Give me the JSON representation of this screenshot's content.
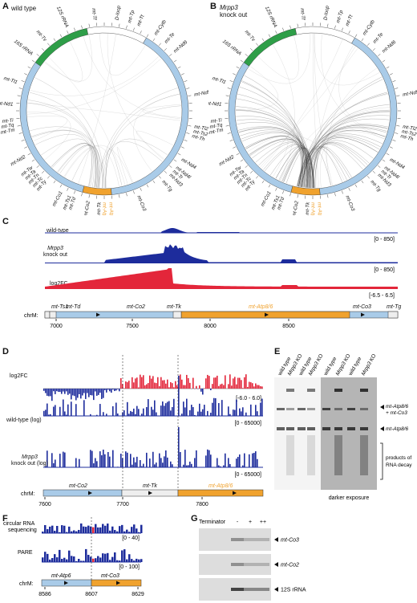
{
  "panels": {
    "A": "A",
    "B": "B",
    "C": "C",
    "D": "D",
    "E": "E",
    "F": "F",
    "G": "G"
  },
  "panelA": {
    "title": "wild type"
  },
  "panelB": {
    "title_italic": "Mrpp3",
    "title_rest": "knock out"
  },
  "circos_labels": {
    "top": [
      "16S rRNA",
      "mt-Tv",
      "12S rRNA",
      "mt-Tf",
      "D-loop",
      "mt-Tp",
      "mt-Tt",
      "mt-Cytb"
    ],
    "left": [
      "mt-Tl1",
      "mt-Nd1",
      "mt-Ti",
      "mt-Tq",
      "mt-Tm",
      "mt-Nd2",
      "mt-Tw",
      "mt-Ta",
      "mt-Tn",
      "mt-Tc",
      "mt-Ty",
      "mt-Co1"
    ],
    "right": [
      "mt-Te",
      "mt-Nd6",
      "mt-Nd5",
      "mt-Tl2",
      "mt-Ts2",
      "mt-Th",
      "mt-Nd4",
      "mt-Nd4l",
      "mt-Tr",
      "mt-Nd3",
      "mt-Tg",
      "mt-Co3"
    ],
    "bottom": [
      "mt-Ts1",
      "mt-Td",
      "mt-Co2",
      "mt-Tk",
      "mt-Atp8",
      "mt-Atp6"
    ]
  },
  "panelC": {
    "tracks": [
      {
        "label": "wild-type",
        "range": "[0 - 850]"
      },
      {
        "label_italic": "Mrpp3",
        "label_rest": "knock out",
        "range": "[0 - 850]"
      },
      {
        "label": "log2FC",
        "range": "[-6.5 - 6.5]"
      }
    ],
    "genes": [
      "mt-Ts1",
      "mt-Td",
      "mt-Co2",
      "mt-Tk",
      "mt-Atp8/6",
      "mt-Co3",
      "mt-Tg"
    ],
    "chrom": "chrM:",
    "ticks": [
      "7000",
      "7500",
      "8000",
      "8500"
    ]
  },
  "panelD": {
    "tracks": [
      {
        "label": "log2FC",
        "range": "[-6.0 - 6.0]"
      },
      {
        "label": "wild-type (log)",
        "range": "[0 - 65000]"
      },
      {
        "label_italic": "Mrpp3",
        "label_rest": "knock out (log)",
        "range": "[0 - 65000]"
      }
    ],
    "genes": [
      "mt-Co2",
      "mt-Tk",
      "mt-Atp8/6"
    ],
    "chrom": "chrM:",
    "ticks": [
      "7600",
      "7700",
      "7800"
    ]
  },
  "panelE": {
    "lanes": [
      "wild type",
      "Mrpp3 KO",
      "wild type",
      "Mrpp3 KO",
      "wild type",
      "Mrpp3 KO",
      "wild type",
      "Mrpp3 KO"
    ],
    "arrows": [
      "mt-Atp8/6",
      "+ mt-Co3",
      "mt-Atp8/6"
    ],
    "bracket": [
      "products of",
      "RNA decay"
    ],
    "caption": "darker exposure"
  },
  "panelF": {
    "tracks": [
      {
        "label": "circular RNA",
        "label2": "sequencing",
        "range": "[0 - 40]"
      },
      {
        "label": "PARE",
        "range": "[0 - 100]"
      }
    ],
    "genes": [
      "mt-Atp6",
      "mt-Co3"
    ],
    "chrom": "chrM:",
    "ticks": [
      "8586",
      "8607",
      "8629"
    ]
  },
  "panelG": {
    "header": "Terminator",
    "cols": [
      "-",
      "+",
      "++"
    ],
    "blots": [
      "mt-Co3",
      "mt-Co2",
      "12S rRNA"
    ]
  }
}
